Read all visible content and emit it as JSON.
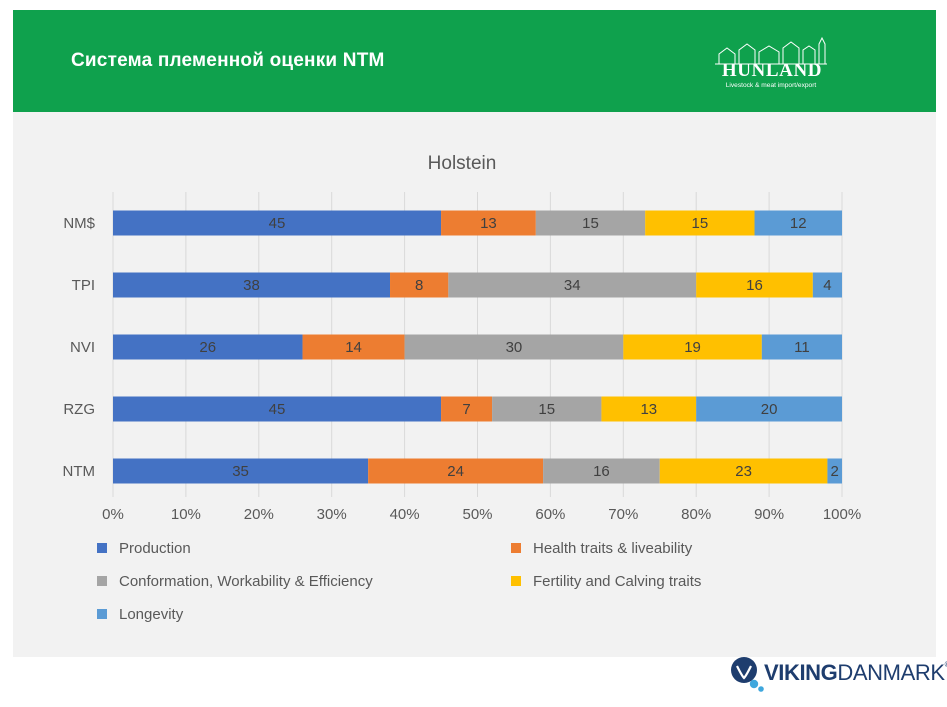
{
  "slide": {
    "title": "Система племенной оценки NTM"
  },
  "logos": {
    "hunland_name": "HUNLAND",
    "hunland_tagline": "Livestock & meat import/export",
    "viking_bold": "VIKING",
    "viking_light": "DANMARK",
    "viking_mark": "®"
  },
  "colors": {
    "header_green": "#0fa14d",
    "panel_bg": "#f2f2f2"
  },
  "chart_data": {
    "type": "bar",
    "orientation": "horizontal",
    "stacked": "percent",
    "title": "Holstein",
    "categories": [
      "NM$",
      "TPI",
      "NVI",
      "RZG",
      "NTM"
    ],
    "series": [
      {
        "name": "Production",
        "color": "#4472c4",
        "values": [
          45,
          38,
          26,
          45,
          35
        ]
      },
      {
        "name": "Health traits & liveability",
        "color": "#ed7d31",
        "values": [
          13,
          8,
          14,
          7,
          24
        ]
      },
      {
        "name": "Conformation, Workability & Efficiency",
        "color": "#a5a5a5",
        "values": [
          15,
          34,
          30,
          15,
          16
        ]
      },
      {
        "name": "Fertility and Calving traits",
        "color": "#ffc000",
        "values": [
          15,
          16,
          19,
          13,
          23
        ]
      },
      {
        "name": "Longevity",
        "color": "#5b9bd5",
        "values": [
          12,
          4,
          11,
          20,
          2
        ]
      }
    ],
    "xticks": [
      "0%",
      "10%",
      "20%",
      "30%",
      "40%",
      "50%",
      "60%",
      "70%",
      "80%",
      "90%",
      "100%"
    ],
    "xlim": [
      0,
      100
    ],
    "grid": "vertical",
    "legend": "bottom"
  }
}
